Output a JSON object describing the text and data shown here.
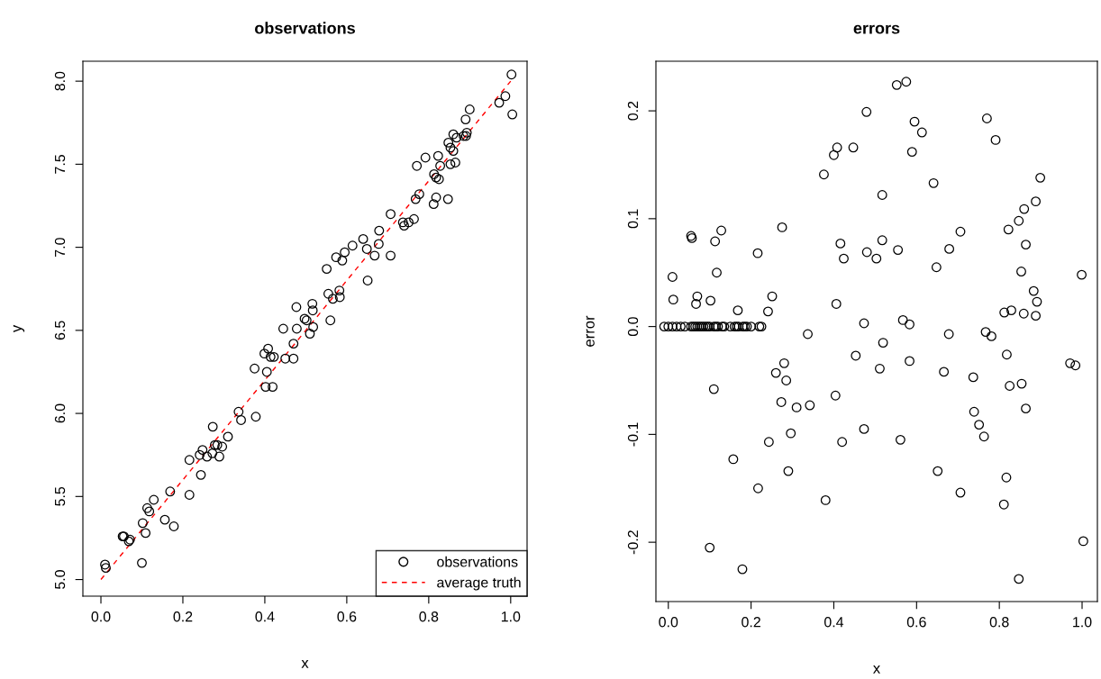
{
  "chart_data": [
    {
      "type": "scatter",
      "title": "observations",
      "xlabel": "x",
      "ylabel": "y",
      "xlim": [
        -0.044,
        1.04
      ],
      "ylim": [
        4.9,
        8.12
      ],
      "xticks": [
        {
          "value": 0,
          "label": "0.0"
        },
        {
          "value": 0.2,
          "label": "0.2"
        },
        {
          "value": 0.4,
          "label": "0.4"
        },
        {
          "value": 0.6,
          "label": "0.6"
        },
        {
          "value": 0.8,
          "label": "0.8"
        },
        {
          "value": 1,
          "label": "1.0"
        }
      ],
      "yticks": [
        {
          "value": 5,
          "label": "5.0"
        },
        {
          "value": 5.5,
          "label": "5.5"
        },
        {
          "value": 6,
          "label": "6.0"
        },
        {
          "value": 6.5,
          "label": "6.5"
        },
        {
          "value": 7,
          "label": "7.0"
        },
        {
          "value": 7.5,
          "label": "7.5"
        },
        {
          "value": 8,
          "label": "8.0"
        }
      ],
      "legend": "bottom right",
      "series": [
        {
          "name": "observations",
          "color": "#000000",
          "marker": "circle",
          "x": [
            0.01,
            0.012,
            0.053,
            0.056,
            0.068,
            0.071,
            0.1,
            0.102,
            0.109,
            0.113,
            0.118,
            0.129,
            0.156,
            0.169,
            0.178,
            0.216,
            0.216,
            0.241,
            0.244,
            0.248,
            0.259,
            0.272,
            0.273,
            0.278,
            0.284,
            0.289,
            0.296,
            0.31,
            0.336,
            0.342,
            0.375,
            0.378,
            0.399,
            0.402,
            0.405,
            0.408,
            0.414,
            0.419,
            0.422,
            0.445,
            0.45,
            0.47,
            0.47,
            0.477,
            0.478,
            0.497,
            0.502,
            0.51,
            0.516,
            0.517,
            0.518,
            0.551,
            0.555,
            0.56,
            0.566,
            0.574,
            0.582,
            0.583,
            0.589,
            0.595,
            0.614,
            0.64,
            0.649,
            0.651,
            0.668,
            0.678,
            0.679,
            0.707,
            0.707,
            0.737,
            0.74,
            0.751,
            0.764,
            0.768,
            0.771,
            0.777,
            0.792,
            0.812,
            0.813,
            0.818,
            0.818,
            0.823,
            0.825,
            0.828,
            0.847,
            0.848,
            0.853,
            0.853,
            0.86,
            0.86,
            0.865,
            0.868,
            0.885,
            0.89,
            0.891,
            0.893,
            0.9,
            0.972,
            0.987,
            1.002,
            1.004
          ],
          "values": [
            5.09,
            5.07,
            5.26,
            5.26,
            5.23,
            5.24,
            5.1,
            5.34,
            5.28,
            5.43,
            5.41,
            5.48,
            5.36,
            5.53,
            5.32,
            5.51,
            5.72,
            5.75,
            5.63,
            5.78,
            5.74,
            5.76,
            5.92,
            5.81,
            5.81,
            5.74,
            5.8,
            5.86,
            6.01,
            5.96,
            6.27,
            5.98,
            6.36,
            6.16,
            6.25,
            6.39,
            6.34,
            6.16,
            6.34,
            6.51,
            6.33,
            6.33,
            6.42,
            6.64,
            6.51,
            6.57,
            6.56,
            6.48,
            6.66,
            6.62,
            6.52,
            6.87,
            6.72,
            6.56,
            6.69,
            6.94,
            6.74,
            6.7,
            6.92,
            6.97,
            7.01,
            7.05,
            6.99,
            6.8,
            6.95,
            7.02,
            7.1,
            6.95,
            7.2,
            7.15,
            7.13,
            7.15,
            7.17,
            7.29,
            7.49,
            7.32,
            7.54,
            7.26,
            7.44,
            7.3,
            7.42,
            7.55,
            7.41,
            7.49,
            7.29,
            7.63,
            7.6,
            7.5,
            7.58,
            7.68,
            7.51,
            7.66,
            7.67,
            7.77,
            7.67,
            7.69,
            7.83,
            7.87,
            7.91,
            8.04,
            7.8
          ]
        },
        {
          "name": "average truth",
          "type": "line",
          "color": "#ff0000",
          "line_style": "dashed",
          "marker": "none",
          "x": [
            0,
            1
          ],
          "values": [
            5,
            8
          ]
        }
      ]
    },
    {
      "type": "scatter",
      "title": "errors",
      "xlabel": "x",
      "ylabel": "error",
      "xlim": [
        -0.03,
        1.037
      ],
      "ylim": [
        -0.255,
        0.246
      ],
      "xticks": [
        {
          "value": 0,
          "label": "0.0"
        },
        {
          "value": 0.2,
          "label": "0.2"
        },
        {
          "value": 0.4,
          "label": "0.4"
        },
        {
          "value": 0.6,
          "label": "0.6"
        },
        {
          "value": 0.8,
          "label": "0.8"
        },
        {
          "value": 1,
          "label": "1.0"
        }
      ],
      "yticks": [
        {
          "value": -0.2,
          "label": "-0.2"
        },
        {
          "value": -0.1,
          "label": "-0.1"
        },
        {
          "value": 0,
          "label": "0.0"
        },
        {
          "value": 0.1,
          "label": "0.1"
        },
        {
          "value": 0.2,
          "label": "0.2"
        }
      ],
      "series": [
        {
          "color": "#000000",
          "marker": "circle",
          "x": [
            -0.01,
            0.0,
            0.01,
            0.02,
            0.03,
            0.04,
            0.055,
            0.06,
            0.065,
            0.07,
            0.075,
            0.08,
            0.085,
            0.09,
            0.095,
            0.1,
            0.11,
            0.115,
            0.12,
            0.13,
            0.135,
            0.15,
            0.16,
            0.165,
            0.17,
            0.18,
            0.185,
            0.19,
            0.2,
            0.22,
            0.225,
            0.055,
            0.057,
            0.128,
            0.113,
            0.275,
            0.216,
            0.01,
            0.117,
            0.012,
            0.07,
            0.067,
            0.102,
            0.251,
            0.168,
            0.241,
            0.11,
            0.28,
            0.26,
            0.285,
            0.273,
            0.31,
            0.296,
            0.243,
            0.157,
            0.29,
            0.217,
            0.1,
            0.179,
            0.552,
            0.575,
            0.479,
            0.595,
            0.613,
            0.589,
            0.408,
            0.4,
            0.447,
            0.376,
            0.641,
            0.517,
            0.416,
            0.424,
            0.517,
            0.48,
            0.503,
            0.555,
            0.648,
            0.406,
            0.473,
            0.567,
            0.583,
            0.337,
            0.519,
            0.453,
            0.583,
            0.511,
            0.666,
            0.404,
            0.342,
            0.473,
            0.42,
            0.561,
            0.651,
            0.38,
            0.77,
            0.791,
            0.899,
            0.888,
            0.86,
            0.847,
            0.822,
            0.706,
            0.864,
            0.679,
            0.853,
            0.999,
            0.883,
            0.891,
            0.829,
            0.812,
            0.859,
            0.888,
            0.678,
            0.767,
            0.781,
            0.818,
            0.971,
            0.984,
            0.737,
            0.825,
            0.854,
            0.864,
            0.739,
            0.751,
            0.763,
            0.817,
            0.706,
            0.811,
            1.003,
            0.847
          ],
          "values": [
            0,
            0,
            0,
            0,
            0,
            0,
            0,
            0,
            0,
            0,
            0,
            0,
            0,
            0,
            0,
            0,
            0,
            0,
            0,
            0,
            0,
            0,
            0,
            0,
            0,
            0,
            0,
            0,
            0,
            0,
            0,
            0.084,
            0.082,
            0.089,
            0.079,
            0.092,
            0.068,
            0.046,
            0.05,
            0.025,
            0.028,
            0.021,
            0.024,
            0.028,
            0.015,
            0.014,
            -0.058,
            -0.034,
            -0.043,
            -0.05,
            -0.07,
            -0.075,
            -0.099,
            -0.107,
            -0.123,
            -0.134,
            -0.15,
            -0.205,
            -0.225,
            0.224,
            0.227,
            0.199,
            0.19,
            0.18,
            0.162,
            0.166,
            0.159,
            0.166,
            0.141,
            0.133,
            0.122,
            0.077,
            0.063,
            0.08,
            0.069,
            0.063,
            0.071,
            0.055,
            0.021,
            0.003,
            0.006,
            0.002,
            -0.007,
            -0.015,
            -0.027,
            -0.032,
            -0.039,
            -0.042,
            -0.064,
            -0.073,
            -0.095,
            -0.107,
            -0.105,
            -0.134,
            -0.161,
            0.193,
            0.173,
            0.138,
            0.116,
            0.109,
            0.098,
            0.09,
            0.088,
            0.076,
            0.072,
            0.051,
            0.048,
            0.033,
            0.023,
            0.015,
            0.013,
            0.012,
            0.01,
            -0.007,
            -0.005,
            -0.009,
            -0.026,
            -0.034,
            -0.036,
            -0.047,
            -0.055,
            -0.053,
            -0.076,
            -0.079,
            -0.091,
            -0.102,
            -0.14,
            -0.154,
            -0.165,
            -0.199,
            -0.234
          ]
        }
      ]
    }
  ]
}
